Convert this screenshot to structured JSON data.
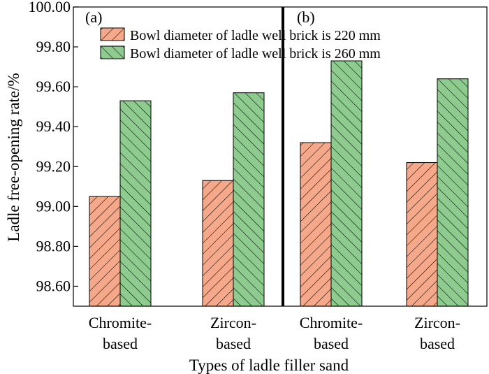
{
  "chart_data": {
    "type": "bar",
    "xlabel": "Types of ladle filler sand",
    "ylabel": "Ladle free-opening rate/%",
    "ylim": [
      98.5,
      100.0
    ],
    "yticks": [
      "98.60",
      "98.80",
      "99.00",
      "99.20",
      "99.40",
      "99.60",
      "99.80",
      "100.00"
    ],
    "panels": [
      {
        "label": "(a)",
        "categories": [
          [
            "Chromite-",
            "based"
          ],
          [
            "Zircon-",
            "based"
          ]
        ],
        "series": [
          {
            "name": "Bowl diameter of ladle well brick is 220 mm",
            "values": [
              99.05,
              99.13
            ]
          },
          {
            "name": "Bowl diameter of ladle well brick is 260 mm",
            "values": [
              99.53,
              99.57
            ]
          }
        ]
      },
      {
        "label": "(b)",
        "categories": [
          [
            "Chromite-",
            "based"
          ],
          [
            "Zircon-",
            "based"
          ]
        ],
        "series": [
          {
            "name": "Bowl diameter of ladle well brick is 220 mm",
            "values": [
              99.32,
              99.22
            ]
          },
          {
            "name": "Bowl diameter of ladle well brick is 260 mm",
            "values": [
              99.73,
              99.64
            ]
          }
        ]
      }
    ],
    "legend": [
      {
        "name": "Bowl diameter of ladle well brick is 220 mm",
        "color": "#F6A98A",
        "hatch": "forward"
      },
      {
        "name": "Bowl diameter of ladle well brick is 260 mm",
        "color": "#8DCB8E",
        "hatch": "backward"
      }
    ],
    "legend_position": "top",
    "grid": false
  }
}
